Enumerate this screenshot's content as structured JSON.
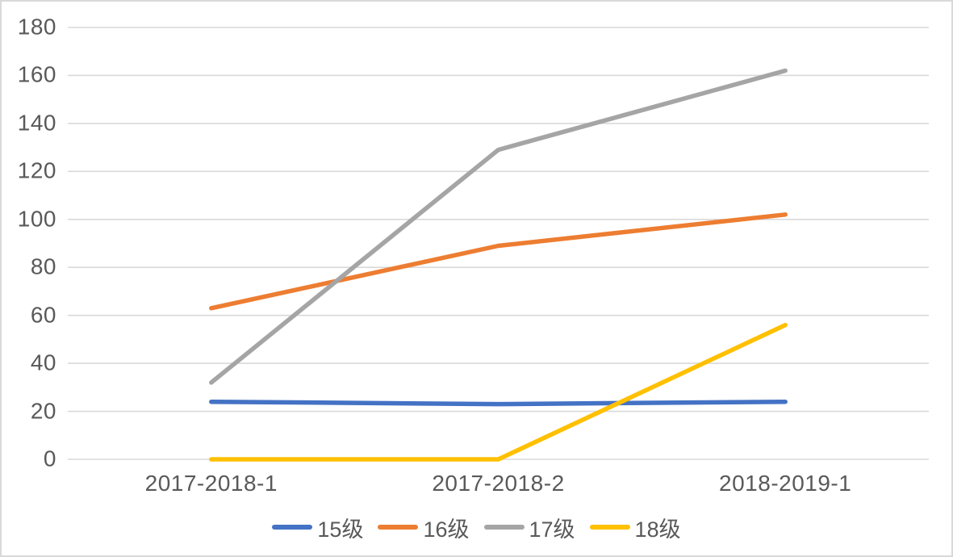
{
  "chart_data": {
    "type": "line",
    "title": "",
    "xlabel": "",
    "ylabel": "",
    "categories": [
      "2017-2018-1",
      "2017-2018-2",
      "2018-2019-1"
    ],
    "series": [
      {
        "name": "15级",
        "color": "#4472C4",
        "values": [
          24,
          23,
          24
        ]
      },
      {
        "name": "16级",
        "color": "#ED7D31",
        "values": [
          63,
          89,
          102
        ]
      },
      {
        "name": "17级",
        "color": "#A5A5A5",
        "values": [
          32,
          129,
          162
        ]
      },
      {
        "name": "18级",
        "color": "#FFC000",
        "values": [
          0,
          0,
          56
        ]
      }
    ],
    "ylim": [
      0,
      180
    ],
    "ytick_step": 20,
    "yticks": [
      0,
      20,
      40,
      60,
      80,
      100,
      120,
      140,
      160,
      180
    ],
    "grid": true,
    "grid_color": "#D9D9D9",
    "axis_text_color": "#595959",
    "frame_border_color": "#D9D9D9",
    "legend_position": "bottom"
  }
}
